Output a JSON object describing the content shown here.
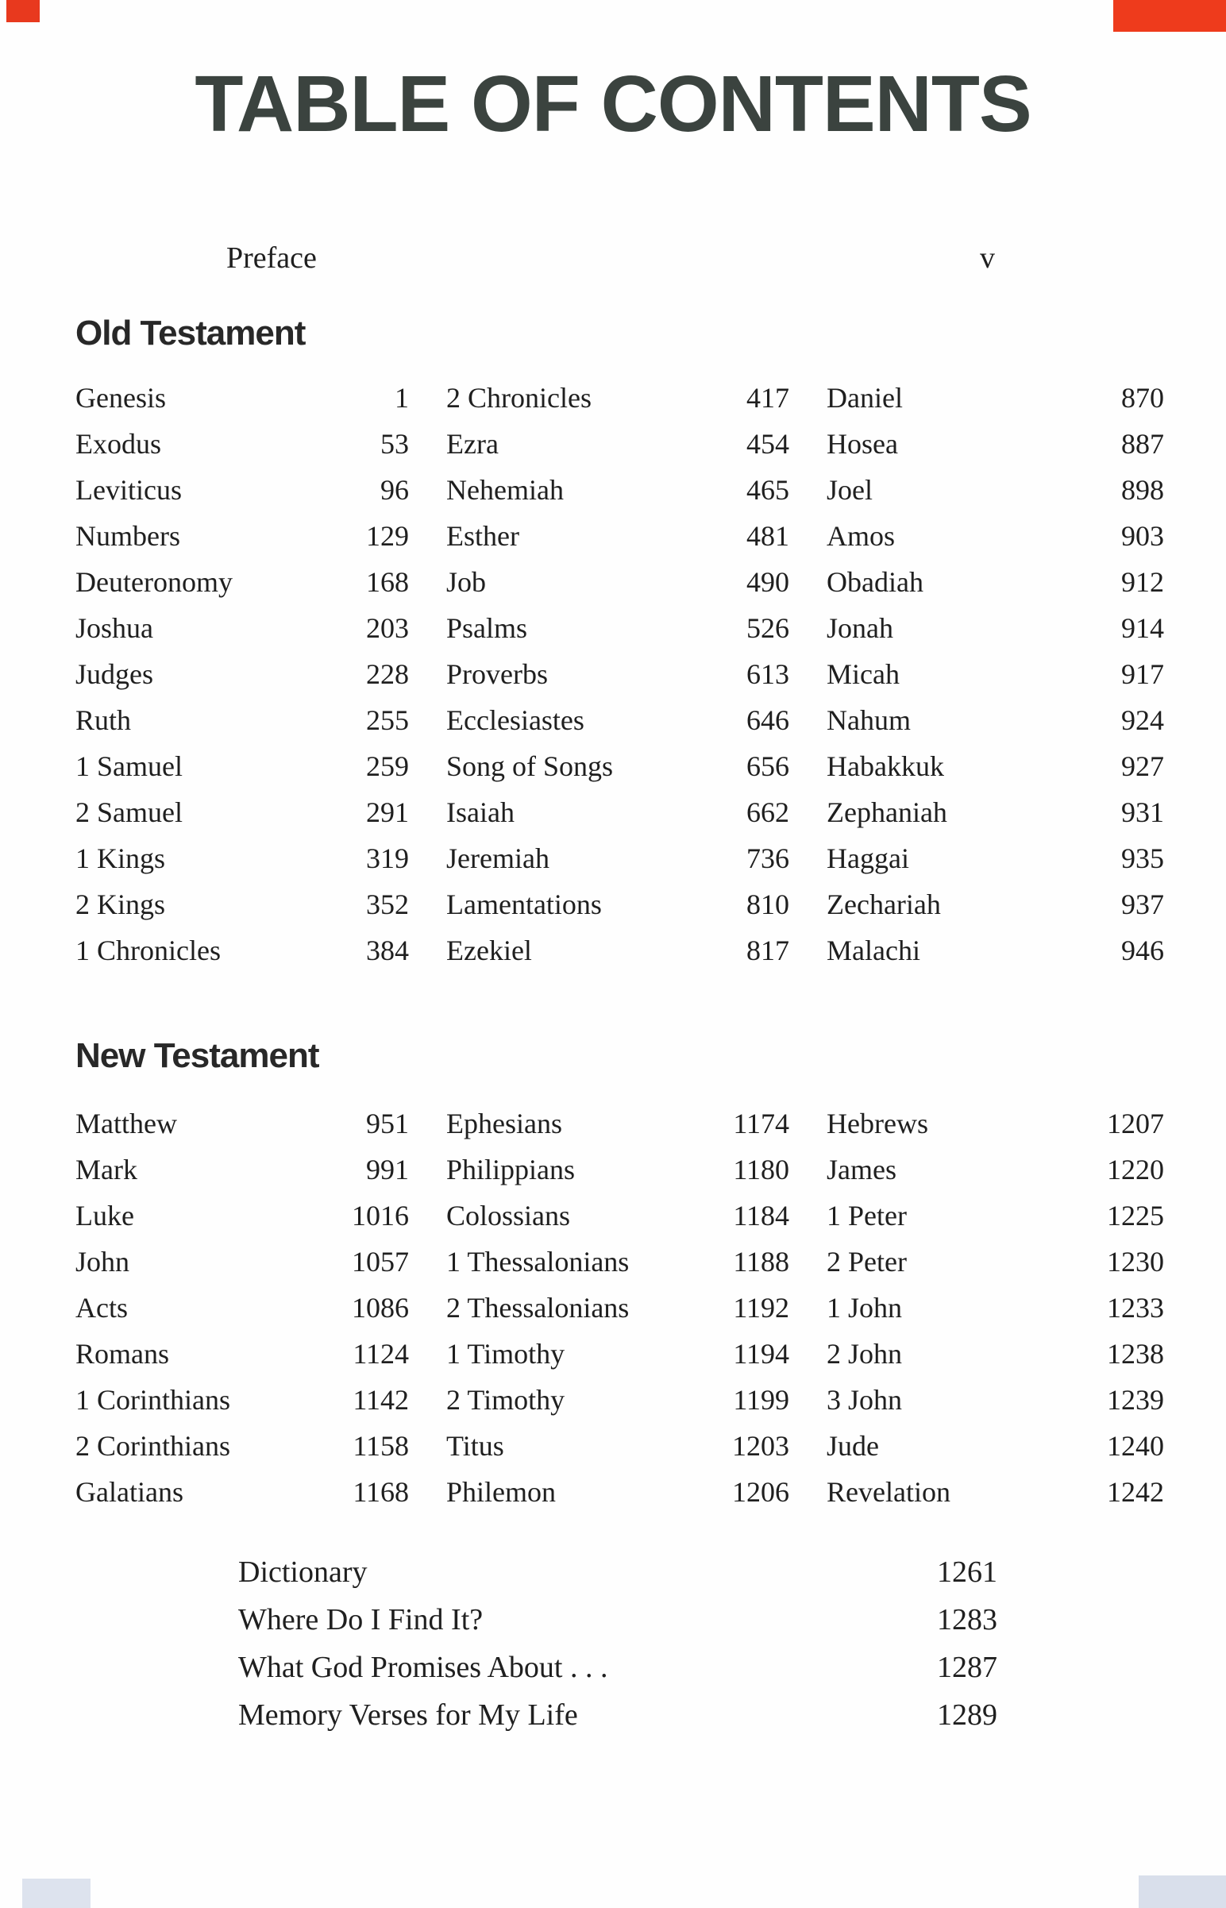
{
  "title": "TABLE OF CONTENTS",
  "preface": {
    "name": "Preface",
    "page": "v"
  },
  "sections": [
    {
      "heading": "Old Testament",
      "columns": [
        [
          {
            "name": "Genesis",
            "page": "1"
          },
          {
            "name": "Exodus",
            "page": "53"
          },
          {
            "name": "Leviticus",
            "page": "96"
          },
          {
            "name": "Numbers",
            "page": "129"
          },
          {
            "name": "Deuteronomy",
            "page": "168"
          },
          {
            "name": "Joshua",
            "page": "203"
          },
          {
            "name": "Judges",
            "page": "228"
          },
          {
            "name": "Ruth",
            "page": "255"
          },
          {
            "name": "1 Samuel",
            "page": "259"
          },
          {
            "name": "2 Samuel",
            "page": "291"
          },
          {
            "name": "1 Kings",
            "page": "319"
          },
          {
            "name": "2 Kings",
            "page": "352"
          },
          {
            "name": "1 Chronicles",
            "page": "384"
          }
        ],
        [
          {
            "name": "2 Chronicles",
            "page": "417"
          },
          {
            "name": "Ezra",
            "page": "454"
          },
          {
            "name": "Nehemiah",
            "page": "465"
          },
          {
            "name": "Esther",
            "page": "481"
          },
          {
            "name": "Job",
            "page": "490"
          },
          {
            "name": "Psalms",
            "page": "526"
          },
          {
            "name": "Proverbs",
            "page": "613"
          },
          {
            "name": "Ecclesiastes",
            "page": "646"
          },
          {
            "name": "Song of Songs",
            "page": "656"
          },
          {
            "name": "Isaiah",
            "page": "662"
          },
          {
            "name": "Jeremiah",
            "page": "736"
          },
          {
            "name": "Lamentations",
            "page": "810"
          },
          {
            "name": "Ezekiel",
            "page": "817"
          }
        ],
        [
          {
            "name": "Daniel",
            "page": "870"
          },
          {
            "name": "Hosea",
            "page": "887"
          },
          {
            "name": "Joel",
            "page": "898"
          },
          {
            "name": "Amos",
            "page": "903"
          },
          {
            "name": "Obadiah",
            "page": "912"
          },
          {
            "name": "Jonah",
            "page": "914"
          },
          {
            "name": "Micah",
            "page": "917"
          },
          {
            "name": "Nahum",
            "page": "924"
          },
          {
            "name": "Habakkuk",
            "page": "927"
          },
          {
            "name": "Zephaniah",
            "page": "931"
          },
          {
            "name": "Haggai",
            "page": "935"
          },
          {
            "name": "Zechariah",
            "page": "937"
          },
          {
            "name": "Malachi",
            "page": "946"
          }
        ]
      ]
    },
    {
      "heading": "New Testament",
      "columns": [
        [
          {
            "name": "Matthew",
            "page": "951"
          },
          {
            "name": "Mark",
            "page": "991"
          },
          {
            "name": "Luke",
            "page": "1016"
          },
          {
            "name": "John",
            "page": "1057"
          },
          {
            "name": "Acts",
            "page": "1086"
          },
          {
            "name": "Romans",
            "page": "1124"
          },
          {
            "name": "1 Corinthians",
            "page": "1142"
          },
          {
            "name": "2 Corinthians",
            "page": "1158"
          },
          {
            "name": "Galatians",
            "page": "1168"
          }
        ],
        [
          {
            "name": "Ephesians",
            "page": "1174"
          },
          {
            "name": "Philippians",
            "page": "1180"
          },
          {
            "name": "Colossians",
            "page": "1184"
          },
          {
            "name": "1 Thessalonians",
            "page": "1188"
          },
          {
            "name": "2 Thessalonians",
            "page": "1192"
          },
          {
            "name": "1 Timothy",
            "page": "1194"
          },
          {
            "name": "2 Timothy",
            "page": "1199"
          },
          {
            "name": "Titus",
            "page": "1203"
          },
          {
            "name": "Philemon",
            "page": "1206"
          }
        ],
        [
          {
            "name": "Hebrews",
            "page": "1207"
          },
          {
            "name": "James",
            "page": "1220"
          },
          {
            "name": "1 Peter",
            "page": "1225"
          },
          {
            "name": "2 Peter",
            "page": "1230"
          },
          {
            "name": "1 John",
            "page": "1233"
          },
          {
            "name": "2 John",
            "page": "1238"
          },
          {
            "name": "3 John",
            "page": "1239"
          },
          {
            "name": "Jude",
            "page": "1240"
          },
          {
            "name": "Revelation",
            "page": "1242"
          }
        ]
      ]
    }
  ],
  "back_matter": [
    {
      "name": "Dictionary",
      "page": "1261"
    },
    {
      "name": "Where Do I Find It?",
      "page": "1283"
    },
    {
      "name": "What God Promises About . . .",
      "page": "1287"
    },
    {
      "name": "Memory Verses for My Life",
      "page": "1289"
    }
  ],
  "artifacts": {
    "top_left_mark_color": "#e8391e",
    "top_right_mark_color": "#ee3b1c",
    "bottom_left_mark_color": "#dde3ee",
    "bottom_right_mark_color": "#d9dfeb"
  }
}
